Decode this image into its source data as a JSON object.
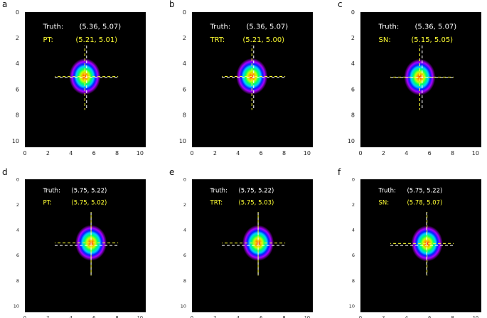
{
  "panels": [
    {
      "letter": "a",
      "truth_label": "Truth:",
      "truth_value": "(5.36, 5.07)",
      "method_label": "PT:",
      "method_value": "(5.21, 5.01)",
      "truth_xy": [
        5.36,
        5.07
      ],
      "estimate_xy": [
        5.21,
        5.01
      ]
    },
    {
      "letter": "b",
      "truth_label": "Truth:",
      "truth_value": "(5.36, 5.07)",
      "method_label": "TRT:",
      "method_value": "(5.21, 5.00)",
      "truth_xy": [
        5.36,
        5.07
      ],
      "estimate_xy": [
        5.21,
        5.0
      ]
    },
    {
      "letter": "c",
      "truth_label": "Truth:",
      "truth_value": "(5.36, 5.07)",
      "method_label": "SN:",
      "method_value": "(5.15, 5.05)",
      "truth_xy": [
        5.36,
        5.07
      ],
      "estimate_xy": [
        5.15,
        5.05
      ]
    },
    {
      "letter": "d",
      "truth_label": "Truth:",
      "truth_value": "(5.75, 5.22)",
      "method_label": "PT:",
      "method_value": "(5.75, 5.02)",
      "truth_xy": [
        5.75,
        5.22
      ],
      "estimate_xy": [
        5.75,
        5.02
      ]
    },
    {
      "letter": "e",
      "truth_label": "Truth:",
      "truth_value": "(5.75, 5.22)",
      "method_label": "TRT:",
      "method_value": "(5.75, 5.03)",
      "truth_xy": [
        5.75,
        5.22
      ],
      "estimate_xy": [
        5.75,
        5.03
      ]
    },
    {
      "letter": "f",
      "truth_label": "Truth:",
      "truth_value": "(5.75, 5.22)",
      "method_label": "SN:",
      "method_value": "(5.78, 5.07)",
      "truth_xy": [
        5.75,
        5.22
      ],
      "estimate_xy": [
        5.78,
        5.07
      ]
    }
  ],
  "axis": {
    "x_ticks": [
      "0",
      "2",
      "4",
      "6",
      "8",
      "10"
    ],
    "y_ticks": [
      "0",
      "2",
      "4",
      "6",
      "8",
      "10"
    ],
    "range": [
      0,
      10.5
    ]
  },
  "colors": {
    "background": "#000000",
    "truth": "#ffffff",
    "estimate": "#ffff33"
  }
}
